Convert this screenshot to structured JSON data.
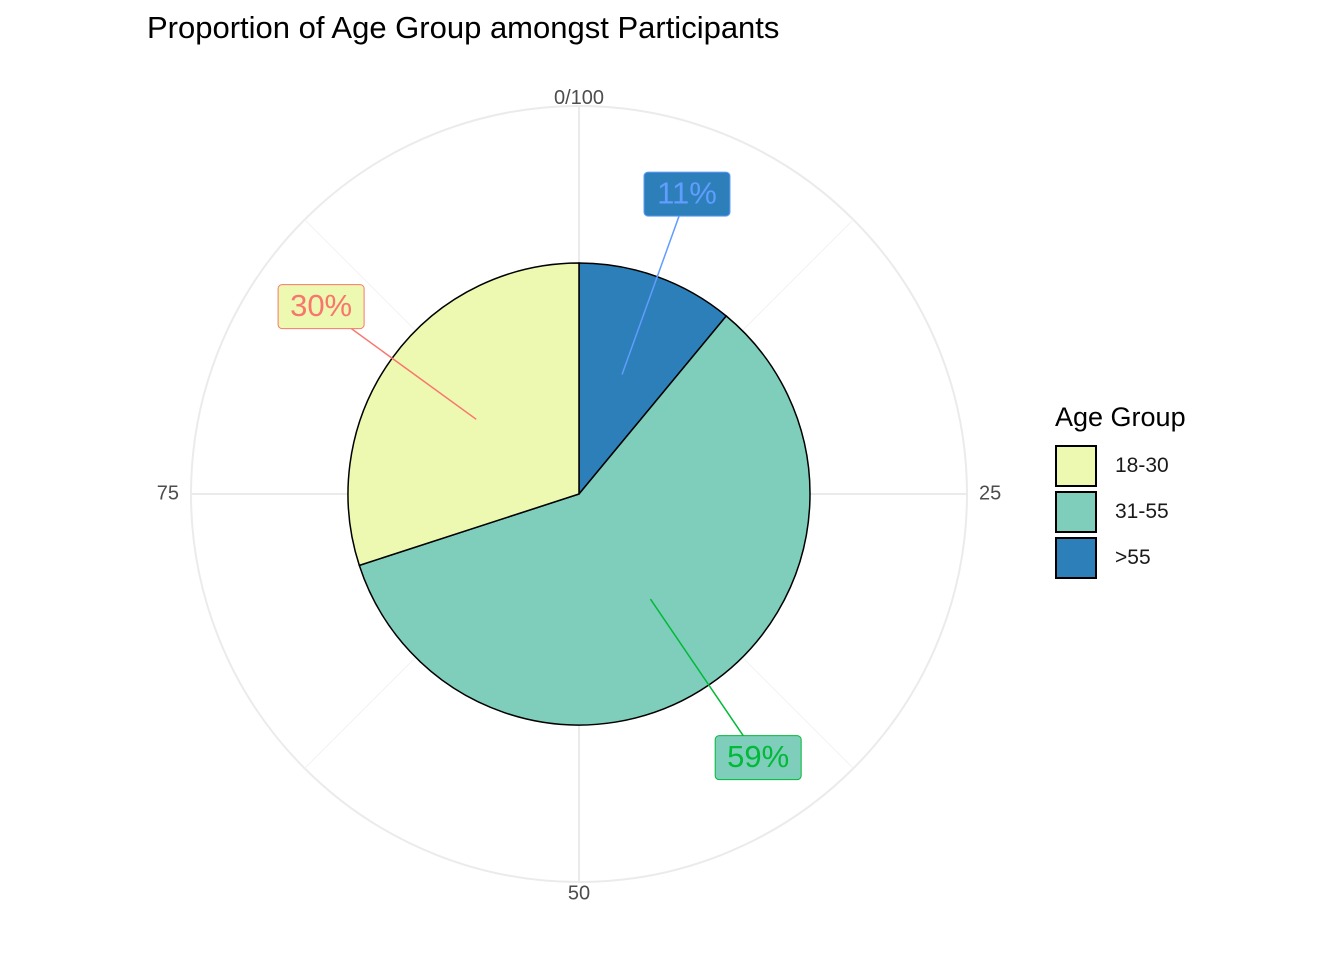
{
  "chart_data": {
    "type": "pie",
    "title": "Proportion of Age Group amongst Participants",
    "legend": {
      "title": "Age Group",
      "position": "right"
    },
    "angular_axis": {
      "tick_labels": [
        "0/100",
        "25",
        "50",
        "75"
      ],
      "tick_values": [
        0,
        25,
        50,
        75
      ]
    },
    "grid": true,
    "slices": [
      {
        "label": "18-30",
        "value": 30,
        "color": "#EDF8B1",
        "label_text": "30%",
        "label_color": "#F8766D"
      },
      {
        "label": "31-55",
        "value": 59,
        "color": "#7FCDBB",
        "label_text": "59%",
        "label_color": "#00BA38"
      },
      {
        "label": ">55",
        "value": 11,
        "color": "#2C7FB8",
        "label_text": "11%",
        "label_color": "#619CFF"
      }
    ],
    "slice_order_clockwise_from_top": [
      ">55",
      "31-55",
      "18-30"
    ]
  }
}
